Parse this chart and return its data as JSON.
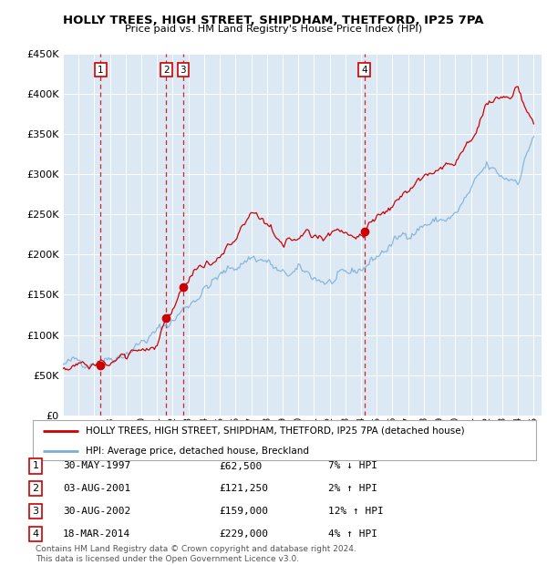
{
  "title": "HOLLY TREES, HIGH STREET, SHIPDHAM, THETFORD, IP25 7PA",
  "subtitle": "Price paid vs. HM Land Registry's House Price Index (HPI)",
  "ylim": [
    0,
    450000
  ],
  "yticks": [
    0,
    50000,
    100000,
    150000,
    200000,
    250000,
    300000,
    350000,
    400000,
    450000
  ],
  "ytick_labels": [
    "£0",
    "£50K",
    "£100K",
    "£150K",
    "£200K",
    "£250K",
    "£300K",
    "£350K",
    "£400K",
    "£450K"
  ],
  "xlim_start": 1995.0,
  "xlim_end": 2025.5,
  "bg_color": "#dce9f5",
  "red_color": "#cc0000",
  "blue_color": "#7aaed6",
  "legend_label_red": "HOLLY TREES, HIGH STREET, SHIPDHAM, THETFORD, IP25 7PA (detached house)",
  "legend_label_blue": "HPI: Average price, detached house, Breckland",
  "sales": [
    {
      "num": 1,
      "date": "30-MAY-1997",
      "year": 1997.41,
      "price": 62500,
      "pct": "7%",
      "dir": "↓"
    },
    {
      "num": 2,
      "date": "03-AUG-2001",
      "year": 2001.59,
      "price": 121250,
      "pct": "2%",
      "dir": "↑"
    },
    {
      "num": 3,
      "date": "30-AUG-2002",
      "year": 2002.66,
      "price": 159000,
      "pct": "12%",
      "dir": "↑"
    },
    {
      "num": 4,
      "date": "18-MAR-2014",
      "year": 2014.21,
      "price": 229000,
      "pct": "4%",
      "dir": "↑"
    }
  ],
  "footer": "Contains HM Land Registry data © Crown copyright and database right 2024.\nThis data is licensed under the Open Government Licence v3.0."
}
